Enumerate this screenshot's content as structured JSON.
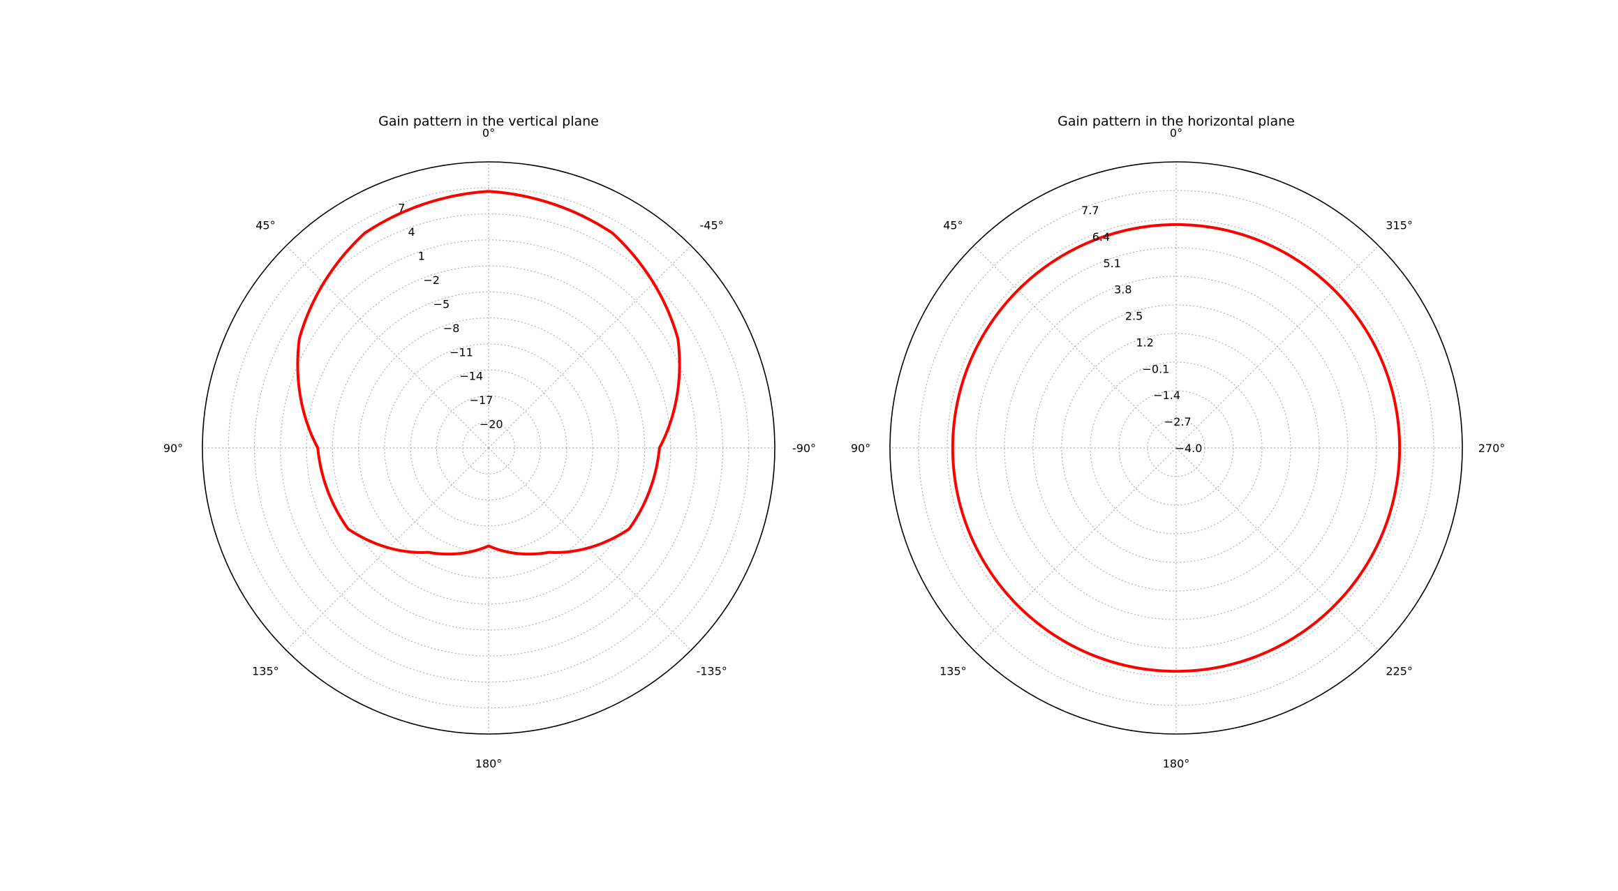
{
  "chart_data": [
    {
      "type": "polar",
      "title": "Gain pattern in the vertical plane",
      "theta_zero": "top",
      "theta_direction": "counterclockwise",
      "angle_labels": [
        "0°",
        "45°",
        "90°",
        "135°",
        "180°",
        "-135°",
        "-90°",
        "-45°"
      ],
      "angle_label_degrees": [
        0,
        45,
        90,
        135,
        180,
        225,
        270,
        315
      ],
      "r_range": [
        -23,
        10
      ],
      "r_ticks": [
        -20,
        -17,
        -14,
        -11,
        -8,
        -5,
        -2,
        1,
        4,
        7
      ],
      "r_tick_labels": [
        "−20",
        "−17",
        "−14",
        "−11",
        "−8",
        "−5",
        "−2",
        "1",
        "4",
        "7"
      ],
      "grid": true,
      "series": [
        {
          "color": "#ff0000",
          "model": "vertical-lobes",
          "theta_deg": [
            0,
            30,
            60,
            90,
            120,
            150,
            180
          ],
          "gain_db": [
            6.6,
            5.6,
            2.2,
            -3.3,
            -4.3,
            -9.1,
            -11.7
          ]
        }
      ]
    },
    {
      "type": "polar",
      "title": "Gain pattern in the horizontal plane",
      "theta_zero": "top",
      "theta_direction": "counterclockwise",
      "angle_labels": [
        "0°",
        "45°",
        "90°",
        "135°",
        "180°",
        "225°",
        "270°",
        "315°"
      ],
      "angle_label_degrees": [
        0,
        45,
        90,
        135,
        180,
        225,
        270,
        315
      ],
      "r_range": [
        -4.0,
        9.0
      ],
      "r_ticks": [
        -4.0,
        -2.7,
        -1.4,
        -0.1,
        1.2,
        2.5,
        3.8,
        5.1,
        6.4,
        7.7
      ],
      "r_tick_labels": [
        "−4.0",
        "−2.7",
        "−1.4",
        "−0.1",
        "1.2",
        "2.5",
        "3.8",
        "5.1",
        "6.4",
        "7.7"
      ],
      "grid": true,
      "series": [
        {
          "color": "#ff0000",
          "model": "constant",
          "theta_deg": [
            0,
            360
          ],
          "gain_db": [
            6.15,
            6.15
          ]
        }
      ]
    }
  ]
}
